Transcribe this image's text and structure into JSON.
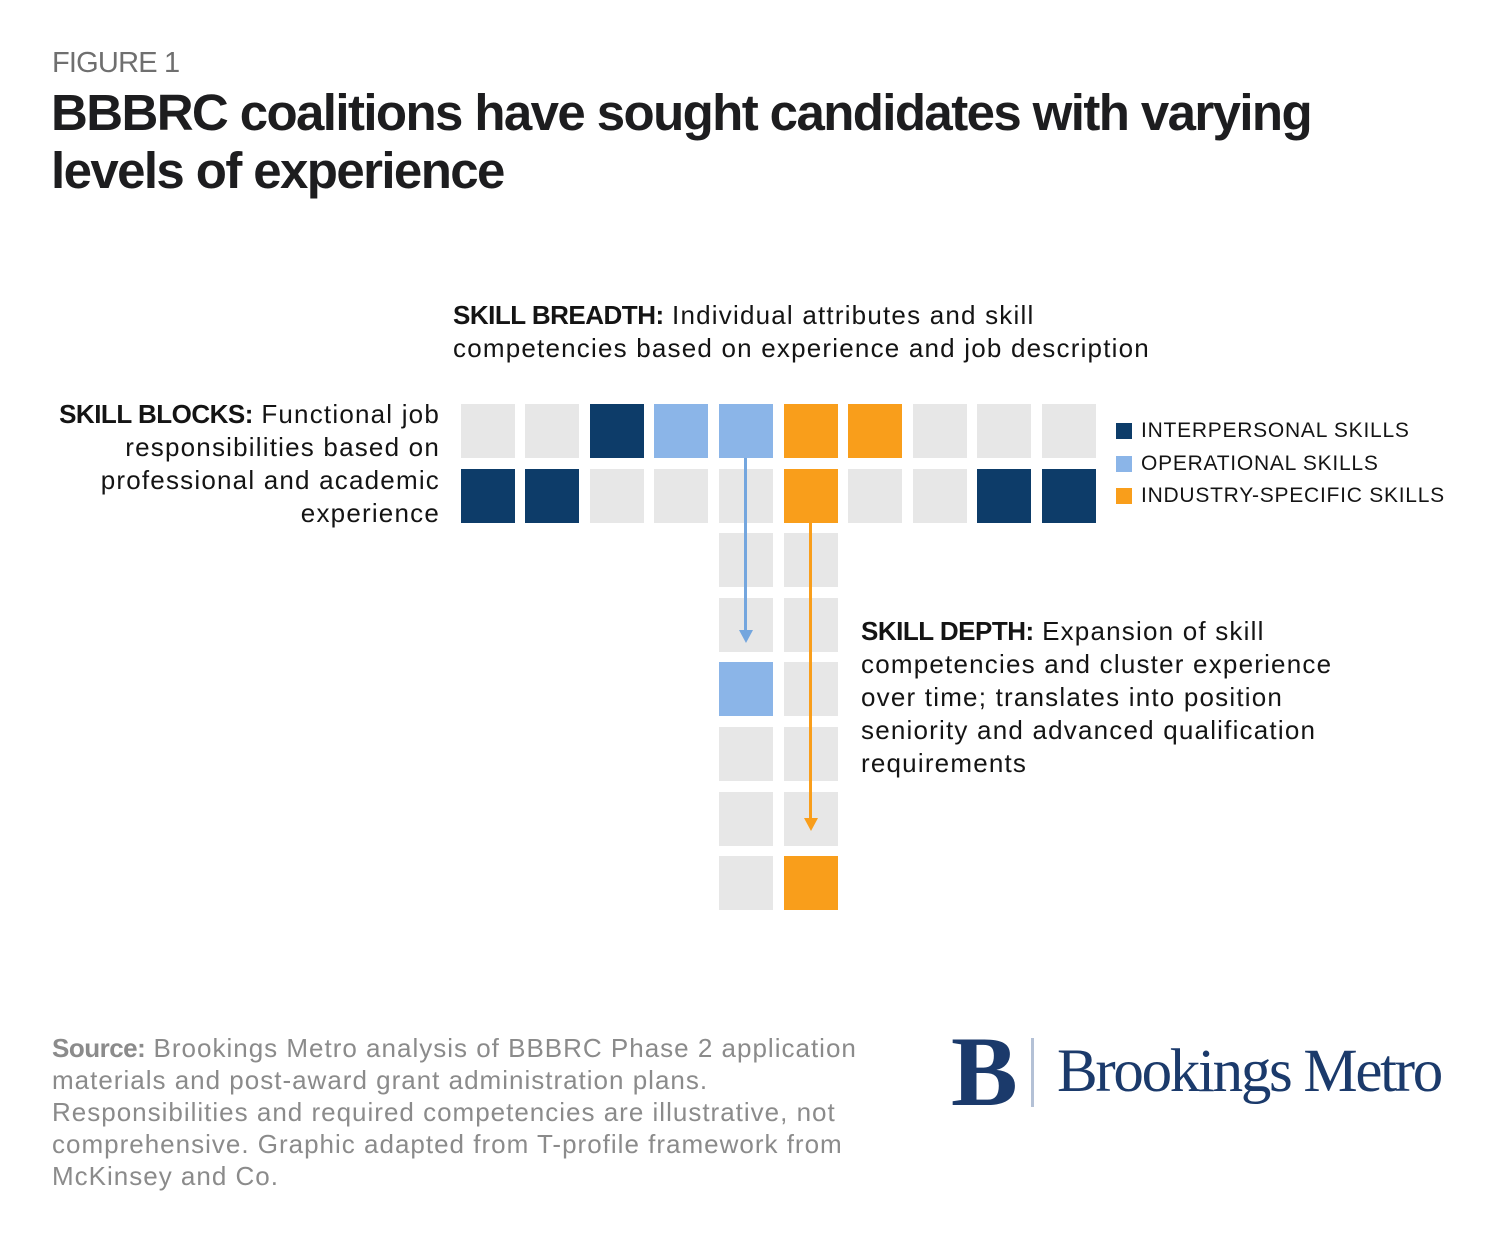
{
  "figure_label": "FIGURE 1",
  "title": "BBBRC coalitions have sought candidates with varying\nlevels of experience",
  "colors": {
    "navy": "#0d3c69",
    "lightblue": "#8bb5e8",
    "orange": "#f99e1b",
    "gray": "#e7e7e7",
    "arrow_blue": "#74a6de",
    "arrow_orange": "#f99e1b",
    "title_text": "#1d1d1f",
    "figure_label_text": "#6f6f6f",
    "body_text": "#141414",
    "source_text": "#8b8b8b",
    "logo_navy": "#1b3a6b"
  },
  "annotations": {
    "skill_breadth": {
      "lead": "SKILL BREADTH:",
      "text": " Individual attributes and skill\ncompetencies based on experience and job description"
    },
    "skill_blocks": {
      "lead": "SKILL BLOCKS:",
      "text": " Functional job\nresponsibilities based on\nprofessional and academic\nexperience"
    },
    "skill_depth": {
      "lead": "SKILL DEPTH:",
      "text": " Expansion of skill\ncompetencies and cluster experience\nover time; translates into position\nseniority and advanced qualification\nrequirements"
    }
  },
  "legend": {
    "items": [
      {
        "label": "INTERPERSONAL SKILLS",
        "color_key": "navy"
      },
      {
        "label": "OPERATIONAL SKILLS",
        "color_key": "lightblue"
      },
      {
        "label": "INDUSTRY-SPECIFIC SKILLS",
        "color_key": "orange"
      }
    ]
  },
  "grid": {
    "legend_meaning": {
      "navy": "INTERPERSONAL SKILLS",
      "lightblue": "OPERATIONAL SKILLS",
      "orange": "INDUSTRY-SPECIFIC SKILLS",
      "gray": "empty"
    },
    "top_rows": [
      [
        "gray",
        "gray",
        "navy",
        "lightblue",
        "lightblue",
        "orange",
        "orange",
        "gray",
        "gray",
        "gray"
      ],
      [
        "navy",
        "navy",
        "gray",
        "gray",
        "gray",
        "orange",
        "gray",
        "gray",
        "navy",
        "navy"
      ]
    ],
    "stem_columns": [
      4,
      5
    ],
    "stem_rows": [
      [
        "gray",
        "gray"
      ],
      [
        "gray",
        "gray"
      ],
      [
        "lightblue",
        "gray"
      ],
      [
        "gray",
        "gray"
      ],
      [
        "gray",
        "gray"
      ],
      [
        "gray",
        "orange"
      ]
    ]
  },
  "arrows": [
    {
      "name": "skill-depth-arrow-blue",
      "color_key": "arrow_blue",
      "column": 4
    },
    {
      "name": "skill-depth-arrow-orange",
      "color_key": "arrow_orange",
      "column": 5
    }
  ],
  "source": {
    "lead": "Source:",
    "text": " Brookings Metro analysis of BBBRC Phase 2 application\nmaterials and post-award grant administration plans.\nResponsibilities and required competencies are illustrative, not\ncomprehensive. Graphic adapted from T-profile framework from\nMcKinsey and Co."
  },
  "logo": {
    "monogram": "B",
    "wordmark": "Brookings Metro"
  }
}
